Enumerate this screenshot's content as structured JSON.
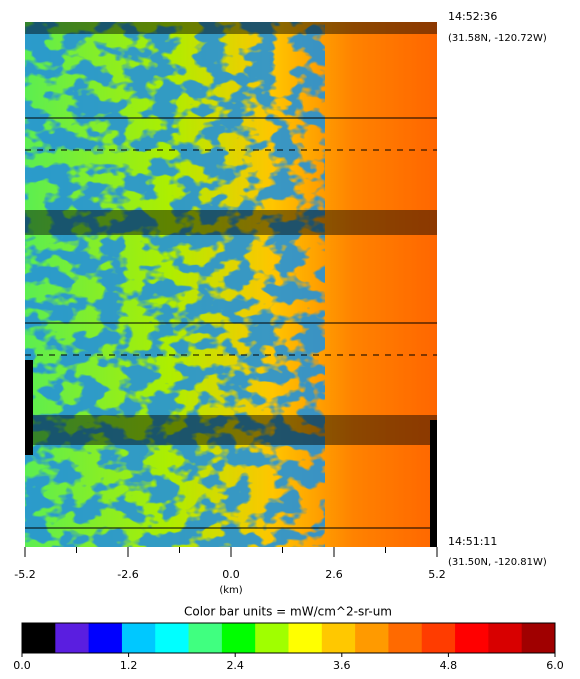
{
  "chart_data": {
    "type": "image",
    "xlabel": "(km)",
    "xlim": [
      -5.2,
      5.2
    ],
    "xticks": [
      -5.2,
      -2.6,
      {
        "value": 0,
        "label": "0.0"
      },
      2.6,
      5.2
    ],
    "xminor": [
      -3.9,
      -1.3,
      1.3,
      3.9
    ],
    "annotations": {
      "top_time": "14:52:36",
      "top_coord": "(31.58N, -120.72W)",
      "bottom_time": "14:51:11",
      "bottom_coord": "(31.50N, -120.81W)"
    },
    "colorbar": {
      "title": "Color bar units = mW/cm^2-sr-um",
      "lim": [
        0,
        6
      ],
      "ticks": [
        {
          "value": 0,
          "label": "0.0"
        },
        1.2,
        2.4,
        3.6,
        4.8,
        {
          "value": 6,
          "label": "6.0"
        }
      ],
      "colors": [
        "#000000",
        "#5a1ee0",
        "#0000ff",
        "#00c8ff",
        "#00ffff",
        "#40ff80",
        "#00ff00",
        "#a0ff00",
        "#ffff00",
        "#ffc800",
        "#ff9a00",
        "#ff6a00",
        "#ff3c00",
        "#ff0000",
        "#d80000",
        "#a00000"
      ]
    }
  }
}
